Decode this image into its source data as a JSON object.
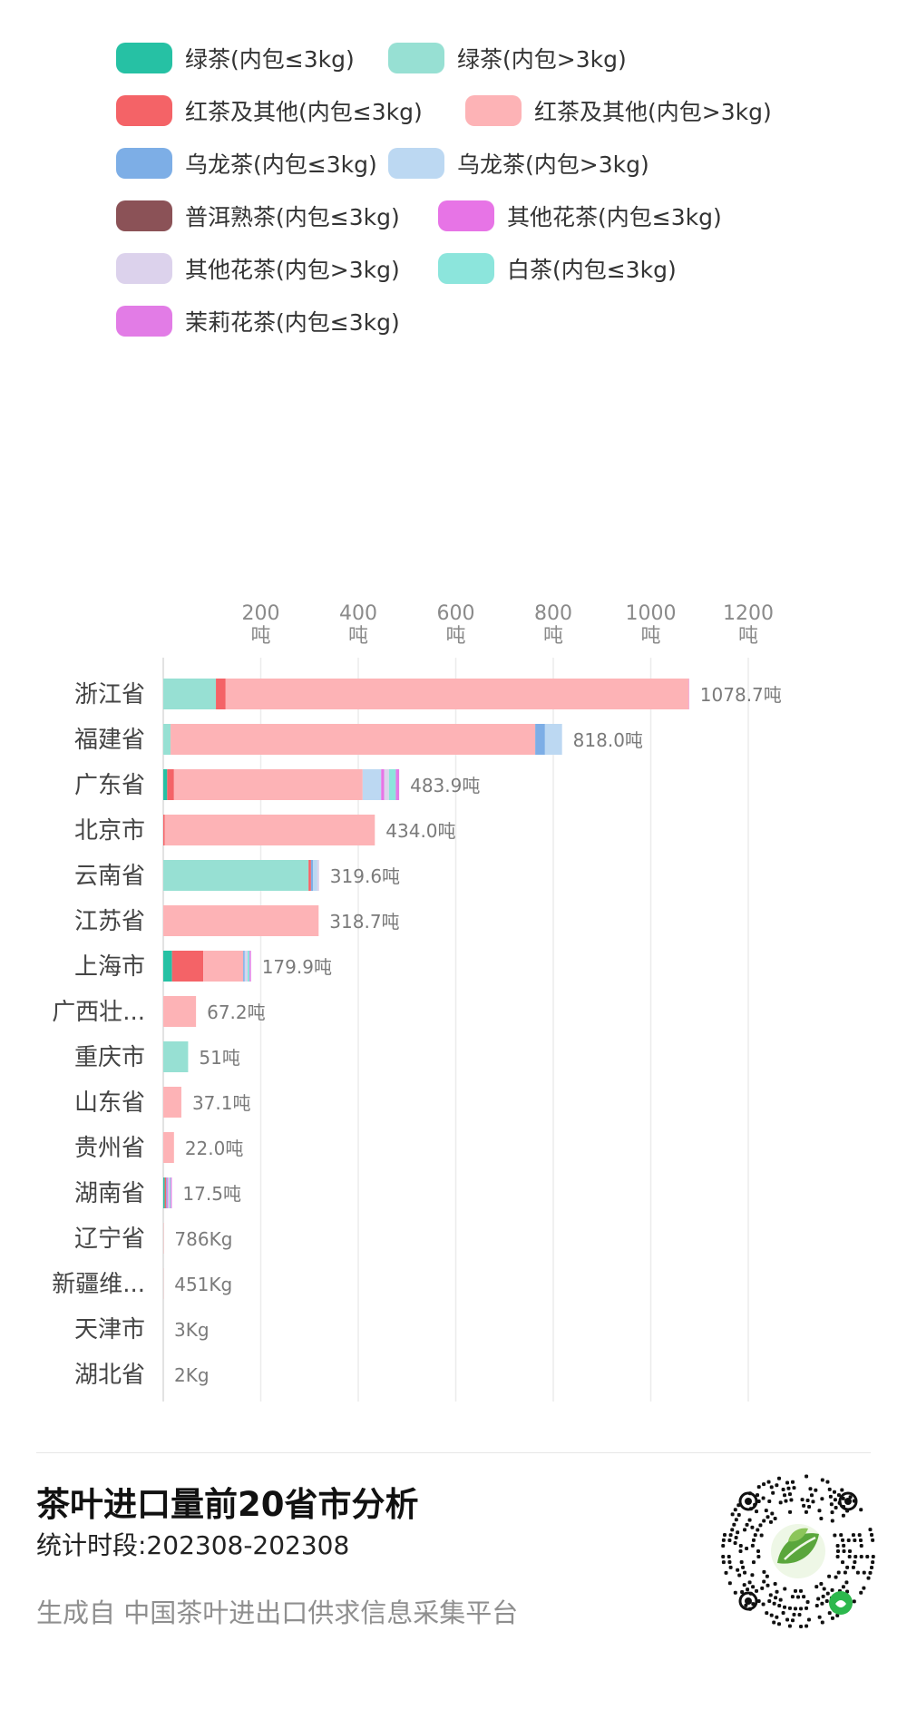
{
  "colors": {
    "green_small": "#26c1a4",
    "green_large": "#97e0d3",
    "black_small": "#f46367",
    "black_large": "#fdb3b6",
    "oolong_small": "#7daee6",
    "oolong_large": "#bcd8f2",
    "puer_small": "#8b5257",
    "flower_small": "#e774e6",
    "flower_large": "#dcd2ec",
    "white_small": "#8ce5dc",
    "jasmine_small": "#e27ce6"
  },
  "legend": [
    {
      "key": "green_small",
      "label": "绿茶(内包≤3kg)"
    },
    {
      "key": "green_large",
      "label": "绿茶(内包>3kg)"
    },
    {
      "key": "black_small",
      "label": "红茶及其他(内包≤3kg)"
    },
    {
      "key": "black_large",
      "label": "红茶及其他(内包>3kg)"
    },
    {
      "key": "oolong_small",
      "label": "乌龙茶(内包≤3kg)"
    },
    {
      "key": "oolong_large",
      "label": "乌龙茶(内包>3kg)"
    },
    {
      "key": "puer_small",
      "label": "普洱熟茶(内包≤3kg)"
    },
    {
      "key": "flower_small",
      "label": "其他花茶(内包≤3kg)"
    },
    {
      "key": "flower_large",
      "label": "其他花茶(内包>3kg)"
    },
    {
      "key": "white_small",
      "label": "白茶(内包≤3kg)"
    },
    {
      "key": "jasmine_small",
      "label": "茉莉花茶(内包≤3kg)"
    }
  ],
  "chart_data": {
    "type": "bar",
    "orientation": "horizontal",
    "stacked": true,
    "grid": true,
    "xlim": [
      0,
      1200
    ],
    "x_ticks": [
      200,
      400,
      600,
      800,
      1000,
      1200
    ],
    "x_tick_unit": "吨",
    "categories": [
      "浙江省",
      "福建省",
      "广东省",
      "北京市",
      "云南省",
      "江苏省",
      "上海市",
      "广西壮...",
      "重庆市",
      "山东省",
      "贵州省",
      "湖南省",
      "辽宁省",
      "新疆维...",
      "天津市",
      "湖北省"
    ],
    "totals": [
      1078.7,
      818.0,
      483.9,
      434.0,
      319.6,
      318.7,
      179.9,
      67.2,
      51,
      37.1,
      22.0,
      17.5,
      0.786,
      0.451,
      0.003,
      0.002
    ],
    "total_labels": [
      "1078.7吨",
      "818.0吨",
      "483.9吨",
      "434.0吨",
      "319.6吨",
      "318.7吨",
      "179.9吨",
      "67.2吨",
      "51吨",
      "37.1吨",
      "22.0吨",
      "17.5吨",
      "786Kg",
      "451Kg",
      "3Kg",
      "2Kg"
    ],
    "series": [
      {
        "key": "green_small",
        "name": "绿茶(内包≤3kg)",
        "values": [
          0,
          0,
          8,
          0,
          0,
          0,
          18,
          0,
          0,
          0,
          0,
          3,
          0,
          0,
          0,
          0
        ]
      },
      {
        "key": "green_large",
        "name": "绿茶(内包>3kg)",
        "values": [
          108,
          15,
          0,
          0,
          298,
          0,
          0,
          0,
          51,
          0,
          0,
          0,
          0,
          0,
          0,
          0
        ]
      },
      {
        "key": "black_small",
        "name": "红茶及其他(内包≤3kg)",
        "values": [
          20,
          0,
          14,
          3,
          5,
          0,
          64,
          0,
          0,
          0,
          0,
          3,
          0,
          0,
          0,
          0
        ]
      },
      {
        "key": "black_large",
        "name": "红茶及其他(内包>3kg)",
        "values": [
          950,
          748,
          387,
          431,
          0,
          318.7,
          82,
          67.2,
          0,
          37.1,
          22.0,
          0,
          0.786,
          0.451,
          0.003,
          0.002
        ]
      },
      {
        "key": "oolong_small",
        "name": "乌龙茶(内包≤3kg)",
        "values": [
          0,
          20,
          0,
          0,
          4,
          0,
          3,
          0,
          0,
          0,
          0,
          2,
          0,
          0,
          0,
          0
        ]
      },
      {
        "key": "oolong_large",
        "name": "乌龙茶(内包>3kg)",
        "values": [
          0,
          35,
          38,
          0,
          9,
          0,
          2,
          0,
          0,
          0,
          0,
          0,
          0,
          0,
          0,
          0
        ]
      },
      {
        "key": "puer_small",
        "name": "普洱熟茶(内包≤3kg)",
        "values": [
          0,
          0,
          0,
          0,
          0,
          0,
          0,
          0,
          0,
          0,
          0,
          0,
          0,
          0,
          0,
          0
        ]
      },
      {
        "key": "flower_small",
        "name": "其他花茶(内包≤3kg)",
        "values": [
          0,
          0,
          6,
          0,
          0,
          0,
          0,
          0,
          0,
          0,
          0,
          2,
          0,
          0,
          0,
          0
        ]
      },
      {
        "key": "flower_large",
        "name": "其他花茶(内包>3kg)",
        "values": [
          0,
          0,
          10,
          0,
          3.6,
          0,
          4,
          0,
          0,
          0,
          0,
          3,
          0,
          0,
          0,
          0
        ]
      },
      {
        "key": "white_small",
        "name": "白茶(内包≤3kg)",
        "values": [
          0,
          0,
          14,
          0,
          0,
          0,
          4,
          0,
          0,
          0,
          0,
          2,
          0,
          0,
          0,
          0
        ]
      },
      {
        "key": "jasmine_small",
        "name": "茉莉花茶(内包≤3kg)",
        "values": [
          0.7,
          0,
          6.9,
          0,
          0,
          0,
          2.9,
          0,
          0,
          0,
          0,
          2.5,
          0,
          0,
          0,
          0
        ]
      }
    ]
  },
  "footer": {
    "title": "茶叶进口量前20省市分析",
    "period": "统计时段:202308-202308",
    "source": "生成自 中国茶叶进出口供求信息采集平台"
  }
}
